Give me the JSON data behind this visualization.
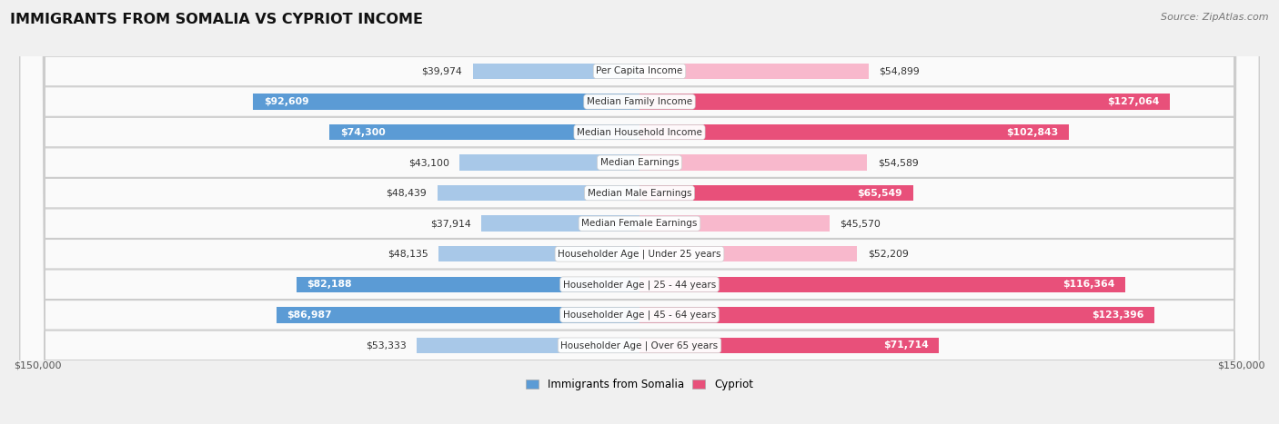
{
  "title": "IMMIGRANTS FROM SOMALIA VS CYPRIOT INCOME",
  "source": "Source: ZipAtlas.com",
  "categories": [
    "Per Capita Income",
    "Median Family Income",
    "Median Household Income",
    "Median Earnings",
    "Median Male Earnings",
    "Median Female Earnings",
    "Householder Age | Under 25 years",
    "Householder Age | 25 - 44 years",
    "Householder Age | 45 - 64 years",
    "Householder Age | Over 65 years"
  ],
  "somalia_values": [
    39974,
    92609,
    74300,
    43100,
    48439,
    37914,
    48135,
    82188,
    86987,
    53333
  ],
  "cypriot_values": [
    54899,
    127064,
    102843,
    54589,
    65549,
    45570,
    52209,
    116364,
    123396,
    71714
  ],
  "somalia_labels": [
    "$39,974",
    "$92,609",
    "$74,300",
    "$43,100",
    "$48,439",
    "$37,914",
    "$48,135",
    "$82,188",
    "$86,987",
    "$53,333"
  ],
  "cypriot_labels": [
    "$54,899",
    "$127,064",
    "$102,843",
    "$54,589",
    "$65,549",
    "$45,570",
    "$52,209",
    "$116,364",
    "$123,396",
    "$71,714"
  ],
  "somalia_color_light": "#a8c8e8",
  "somalia_color_dark": "#5b9bd5",
  "cypriot_color_light": "#f8b8cc",
  "cypriot_color_dark": "#e8507a",
  "max_val": 150000,
  "x_label_left": "$150,000",
  "x_label_right": "$150,000",
  "bar_height": 0.52,
  "background_color": "#f0f0f0",
  "row_color": "#fafafa",
  "somalia_inside_threshold": 60000,
  "cypriot_inside_threshold": 60000
}
